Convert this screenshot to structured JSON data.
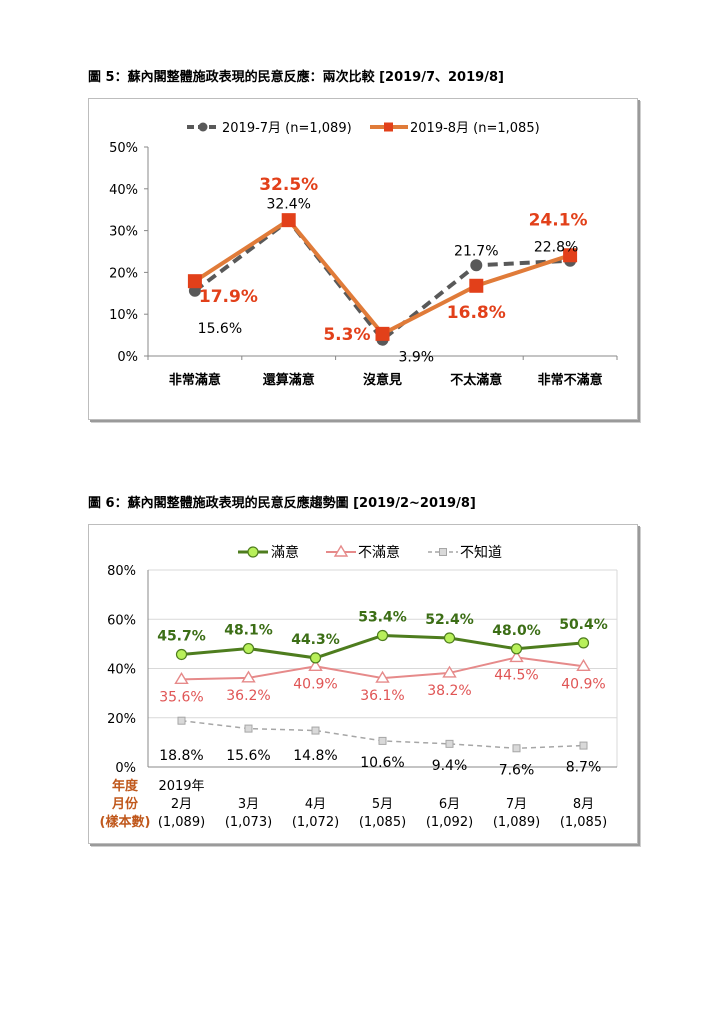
{
  "figure1": {
    "caption": "圖 5：蘇內閣整體施政表現的民意反應：兩次比較  [2019/7、2019/8]"
  },
  "figure2": {
    "caption": "圖 6：蘇內閣整體施政表現的民意反應趨勢圖  [2019/2~2019/8]"
  },
  "colors": {
    "jul": "#595959",
    "aug": "#e07b39",
    "aug_marker": "#e2401a",
    "aug_label": "#e2401a",
    "satisfied": "#4e7d1e",
    "satisfied_fill": "#b8f05a",
    "satisfied_label": "#3c6e16",
    "dissatisfied": "#e68a8a",
    "dissatisfied_label": "#e05555",
    "unknown": "#a6a6a6",
    "axis_label_orange": "#c0581c",
    "grid": "#d9d9d9"
  },
  "chart_data": [
    {
      "type": "line",
      "categories": [
        "非常滿意",
        "還算滿意",
        "沒意見",
        "不太滿意",
        "非常不滿意"
      ],
      "yticks": [
        "0%",
        "10%",
        "20%",
        "30%",
        "40%",
        "50%"
      ],
      "ylim": [
        0,
        50
      ],
      "grid": false,
      "legend": "top",
      "series": [
        {
          "name": "2019-7月 (n=1,089)",
          "values": [
            15.6,
            32.4,
            3.9,
            21.7,
            22.8
          ],
          "labels": [
            "15.6%",
            "32.4%",
            "3.9%",
            "21.7%",
            "22.8%"
          ],
          "style": "dashed"
        },
        {
          "name": "2019-8月 (n=1,085)",
          "values": [
            17.9,
            32.5,
            5.3,
            16.8,
            24.1
          ],
          "labels": [
            "17.9%",
            "32.5%",
            "5.3%",
            "16.8%",
            "24.1%"
          ],
          "style": "solid"
        }
      ]
    },
    {
      "type": "line",
      "categories": [
        "2月",
        "3月",
        "4月",
        "5月",
        "6月",
        "7月",
        "8月"
      ],
      "year_label": "2019年",
      "sample_sizes": [
        "(1,089)",
        "(1,073)",
        "(1,072)",
        "(1,085)",
        "(1,092)",
        "(1,089)",
        "(1,085)"
      ],
      "row_header": [
        "年度",
        "月份",
        "(樣本數)"
      ],
      "yticks": [
        "0%",
        "20%",
        "40%",
        "60%",
        "80%"
      ],
      "ylim": [
        0,
        80
      ],
      "grid": true,
      "legend": "top",
      "series": [
        {
          "name": "滿意",
          "values": [
            45.7,
            48.1,
            44.3,
            53.4,
            52.4,
            48.0,
            50.4
          ],
          "labels": [
            "45.7%",
            "48.1%",
            "44.3%",
            "53.4%",
            "52.4%",
            "48.0%",
            "50.4%"
          ]
        },
        {
          "name": "不滿意",
          "values": [
            35.6,
            36.2,
            40.9,
            36.1,
            38.2,
            44.5,
            40.9
          ],
          "labels": [
            "35.6%",
            "36.2%",
            "40.9%",
            "36.1%",
            "38.2%",
            "44.5%",
            "40.9%"
          ]
        },
        {
          "name": "不知道",
          "values": [
            18.8,
            15.6,
            14.8,
            10.6,
            9.4,
            7.6,
            8.7
          ],
          "labels": [
            "18.8%",
            "15.6%",
            "14.8%",
            "10.6%",
            "9.4%",
            "7.6%",
            "8.7%"
          ]
        }
      ]
    }
  ]
}
